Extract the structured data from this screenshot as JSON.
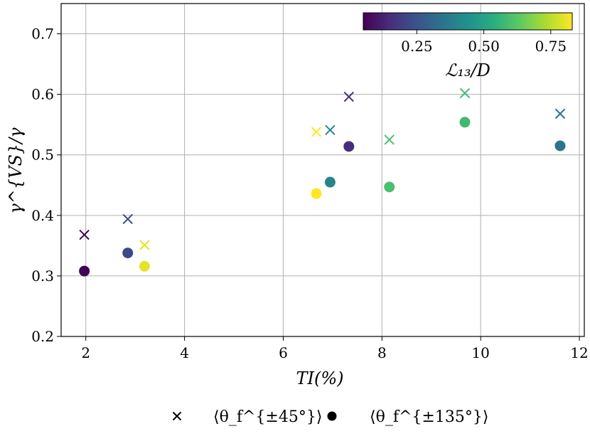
{
  "chart_data": {
    "type": "scatter",
    "title": "",
    "xlabel": "TI(%)",
    "ylabel": "γ^{VS}/γ",
    "xlim": [
      1.5,
      12.1
    ],
    "ylim": [
      0.2,
      0.75
    ],
    "grid": true,
    "x_ticks": [
      2,
      4,
      6,
      8,
      10,
      12
    ],
    "y_ticks": [
      0.2,
      0.3,
      0.4,
      0.5,
      0.6,
      0.7
    ],
    "x_tick_labels": [
      "2",
      "4",
      "6",
      "8",
      "10",
      "12"
    ],
    "y_tick_labels": [
      "0.2",
      "0.3",
      "0.4",
      "0.5",
      "0.6",
      "0.7"
    ],
    "colorbar": {
      "label": "ℒ₁₃/D",
      "range": [
        0.05,
        0.83
      ],
      "ticks": [
        0.25,
        0.5,
        0.75
      ],
      "tick_labels": [
        "0.25",
        "0.50",
        "0.75"
      ],
      "colormap": "viridis",
      "placement": "top-right"
    },
    "series": [
      {
        "name": "⟨θ_f^{±45°}⟩",
        "marker": "x",
        "points": [
          {
            "x": 1.97,
            "y": 0.368,
            "c": 0.05
          },
          {
            "x": 2.85,
            "y": 0.394,
            "c": 0.22
          },
          {
            "x": 3.19,
            "y": 0.351,
            "c": 0.8
          },
          {
            "x": 6.67,
            "y": 0.538,
            "c": 0.83
          },
          {
            "x": 6.95,
            "y": 0.541,
            "c": 0.4
          },
          {
            "x": 7.33,
            "y": 0.596,
            "c": 0.15
          },
          {
            "x": 8.15,
            "y": 0.525,
            "c": 0.6
          },
          {
            "x": 9.68,
            "y": 0.602,
            "c": 0.58
          },
          {
            "x": 11.61,
            "y": 0.568,
            "c": 0.35
          }
        ]
      },
      {
        "name": "⟨θ_f^{±135°}⟩",
        "marker": "o",
        "points": [
          {
            "x": 1.97,
            "y": 0.308,
            "c": 0.05
          },
          {
            "x": 2.85,
            "y": 0.338,
            "c": 0.22
          },
          {
            "x": 3.19,
            "y": 0.316,
            "c": 0.8
          },
          {
            "x": 6.67,
            "y": 0.436,
            "c": 0.83
          },
          {
            "x": 6.95,
            "y": 0.455,
            "c": 0.4
          },
          {
            "x": 7.33,
            "y": 0.514,
            "c": 0.15
          },
          {
            "x": 8.15,
            "y": 0.447,
            "c": 0.6
          },
          {
            "x": 9.68,
            "y": 0.554,
            "c": 0.58
          },
          {
            "x": 11.61,
            "y": 0.515,
            "c": 0.35
          }
        ]
      }
    ],
    "legend": {
      "placement": "bottom-center",
      "entries": [
        {
          "label": "⟨θ_f^{±45°}⟩",
          "marker": "x"
        },
        {
          "label": "⟨θ_f^{±135°}⟩",
          "marker": "o"
        }
      ]
    }
  }
}
